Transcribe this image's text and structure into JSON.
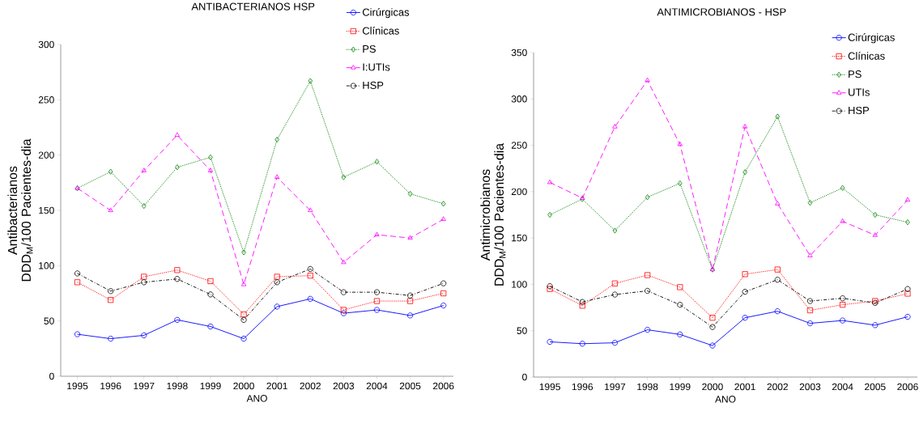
{
  "chart_data": [
    {
      "type": "line",
      "title": "ANTIBACTERIANOS   HSP",
      "xlabel": "ANO",
      "ylabel": "Antibacterianos DDD$_{M}$/100 Pacientes-dia",
      "categories": [
        "1995",
        "1996",
        "1997",
        "1998",
        "1999",
        "2000",
        "2001",
        "2002",
        "2003",
        "2004",
        "2005",
        "2006"
      ],
      "ylim": [
        0,
        300
      ],
      "yticks": [
        0,
        50,
        100,
        150,
        200,
        250,
        300
      ],
      "grid": false,
      "legend": "top right",
      "series": [
        {
          "name": "Cirúrgicas",
          "color": "#0000ff",
          "marker": "circle",
          "line_style": "solid",
          "values": [
            38,
            34,
            37,
            51,
            45,
            34,
            63,
            70,
            57,
            60,
            55,
            64
          ]
        },
        {
          "name": "Clínicas",
          "color": "#ff0000",
          "marker": "square",
          "line_style": "dotted",
          "values": [
            85,
            69,
            90,
            96,
            86,
            56,
            90,
            91,
            60,
            68,
            68,
            75
          ]
        },
        {
          "name": "PS",
          "color": "#008000",
          "marker": "diamond",
          "line_style": "dotted",
          "values": [
            170,
            185,
            154,
            189,
            198,
            112,
            214,
            267,
            180,
            194,
            165,
            156
          ]
        },
        {
          "name": "I:UTIs",
          "color": "#ff00ff",
          "marker": "triangle",
          "line_style": "dashed",
          "values": [
            170,
            150,
            186,
            218,
            186,
            83,
            180,
            150,
            103,
            128,
            125,
            142
          ]
        },
        {
          "name": "HSP",
          "color": "#000000",
          "marker": "circle",
          "line_style": "dashdotted",
          "values": [
            93,
            77,
            85,
            88,
            74,
            51,
            85,
            97,
            76,
            76,
            73,
            84
          ]
        }
      ]
    },
    {
      "type": "line",
      "title": "ANTIMICROBIANOS - HSP",
      "xlabel": "ANO",
      "ylabel": "Antimicrobianos DDD$_{M}$/100 Pacientes-dia",
      "categories": [
        "1995",
        "1996",
        "1997",
        "1998",
        "1999",
        "2000",
        "2001",
        "2002",
        "2003",
        "2004",
        "2005",
        "2006"
      ],
      "ylim": [
        0,
        350
      ],
      "yticks": [
        0,
        50,
        100,
        150,
        200,
        250,
        300,
        350
      ],
      "grid": false,
      "legend": "top right",
      "series": [
        {
          "name": "Cirúrgicas",
          "color": "#0000ff",
          "marker": "circle",
          "line_style": "solid",
          "values": [
            38,
            36,
            37,
            51,
            46,
            34,
            64,
            71,
            58,
            61,
            56,
            65
          ]
        },
        {
          "name": "Clínicas",
          "color": "#ff0000",
          "marker": "square",
          "line_style": "dotted",
          "values": [
            95,
            77,
            101,
            110,
            97,
            64,
            111,
            116,
            72,
            78,
            82,
            90
          ]
        },
        {
          "name": "PS",
          "color": "#008000",
          "marker": "diamond",
          "line_style": "dotted",
          "values": [
            175,
            192,
            158,
            194,
            209,
            116,
            221,
            281,
            188,
            204,
            175,
            167
          ]
        },
        {
          "name": "UTIs",
          "color": "#ff00ff",
          "marker": "triangle",
          "line_style": "dashed",
          "values": [
            210,
            193,
            270,
            320,
            251,
            116,
            270,
            187,
            131,
            168,
            153,
            191
          ]
        },
        {
          "name": "HSP",
          "color": "#000000",
          "marker": "circle",
          "line_style": "dashdotted",
          "values": [
            98,
            81,
            89,
            93,
            78,
            54,
            92,
            105,
            82,
            85,
            80,
            95
          ]
        }
      ]
    }
  ]
}
